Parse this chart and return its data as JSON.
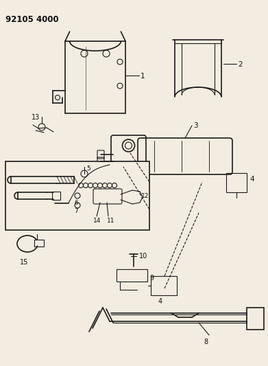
{
  "title_code": "92105 4000",
  "bg_color": "#f2ede0",
  "line_color": "#1a1a1a",
  "label_color": "#111111",
  "fig_w": 3.91,
  "fig_h": 5.33,
  "dpi": 100
}
